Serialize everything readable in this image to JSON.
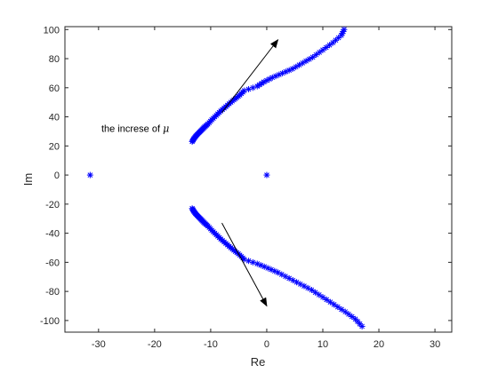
{
  "chart_data": {
    "type": "scatter",
    "xlabel": "Re",
    "ylabel": "Im",
    "xlim": [
      -36,
      33
    ],
    "ylim": [
      -108,
      102
    ],
    "xticks": [
      -30,
      -20,
      -10,
      0,
      10,
      20,
      30
    ],
    "yticks": [
      -100,
      -80,
      -60,
      -40,
      -20,
      0,
      20,
      40,
      60,
      80,
      100
    ],
    "grid": false,
    "box": true,
    "marker": "asterisk",
    "marker_color": "#0000ff",
    "isolated_points": [
      {
        "x": -31.5,
        "y": 0
      },
      {
        "x": 0,
        "y": 0
      }
    ],
    "upper_branch": [
      {
        "x": -13.3,
        "y": 23
      },
      {
        "x": -13.0,
        "y": 25
      },
      {
        "x": -12.6,
        "y": 27
      },
      {
        "x": -12.1,
        "y": 29
      },
      {
        "x": -11.6,
        "y": 31
      },
      {
        "x": -11.1,
        "y": 33
      },
      {
        "x": -10.5,
        "y": 35
      },
      {
        "x": -9.8,
        "y": 38
      },
      {
        "x": -9.0,
        "y": 41
      },
      {
        "x": -8.2,
        "y": 44
      },
      {
        "x": -7.3,
        "y": 47
      },
      {
        "x": -6.4,
        "y": 50
      },
      {
        "x": -5.6,
        "y": 52.5
      },
      {
        "x": -4.8,
        "y": 55
      },
      {
        "x": -4.0,
        "y": 58
      },
      {
        "x": -1.7,
        "y": 61
      },
      {
        "x": -0.5,
        "y": 64
      },
      {
        "x": 1.0,
        "y": 67
      },
      {
        "x": 2.8,
        "y": 70
      },
      {
        "x": 4.6,
        "y": 73
      },
      {
        "x": 6.4,
        "y": 77
      },
      {
        "x": 8.2,
        "y": 81
      },
      {
        "x": 10.0,
        "y": 86
      },
      {
        "x": 11.8,
        "y": 91
      },
      {
        "x": 13.3,
        "y": 96
      },
      {
        "x": 13.8,
        "y": 100
      }
    ],
    "lower_branch": [
      {
        "x": -13.3,
        "y": -23
      },
      {
        "x": -13.0,
        "y": -25
      },
      {
        "x": -12.6,
        "y": -27
      },
      {
        "x": -12.1,
        "y": -29
      },
      {
        "x": -11.6,
        "y": -31
      },
      {
        "x": -11.1,
        "y": -33
      },
      {
        "x": -10.5,
        "y": -35
      },
      {
        "x": -9.8,
        "y": -38
      },
      {
        "x": -9.0,
        "y": -41
      },
      {
        "x": -8.2,
        "y": -44
      },
      {
        "x": -7.3,
        "y": -47
      },
      {
        "x": -6.4,
        "y": -50
      },
      {
        "x": -5.6,
        "y": -52.5
      },
      {
        "x": -4.8,
        "y": -55
      },
      {
        "x": -4.0,
        "y": -58
      },
      {
        "x": -1.7,
        "y": -61
      },
      {
        "x": 0.2,
        "y": -64
      },
      {
        "x": 2.0,
        "y": -67
      },
      {
        "x": 4.0,
        "y": -71
      },
      {
        "x": 6.0,
        "y": -75
      },
      {
        "x": 8.0,
        "y": -79
      },
      {
        "x": 10.0,
        "y": -84
      },
      {
        "x": 12.0,
        "y": -89
      },
      {
        "x": 14.0,
        "y": -94
      },
      {
        "x": 15.8,
        "y": -99
      },
      {
        "x": 17.0,
        "y": -104
      }
    ],
    "annotation": {
      "text": "the increse of ",
      "symbol": "μ"
    },
    "arrows": [
      {
        "from": [
          -8,
          43
        ],
        "to": [
          2,
          93
        ]
      },
      {
        "from": [
          -8,
          -33
        ],
        "to": [
          0,
          -90
        ]
      }
    ]
  }
}
